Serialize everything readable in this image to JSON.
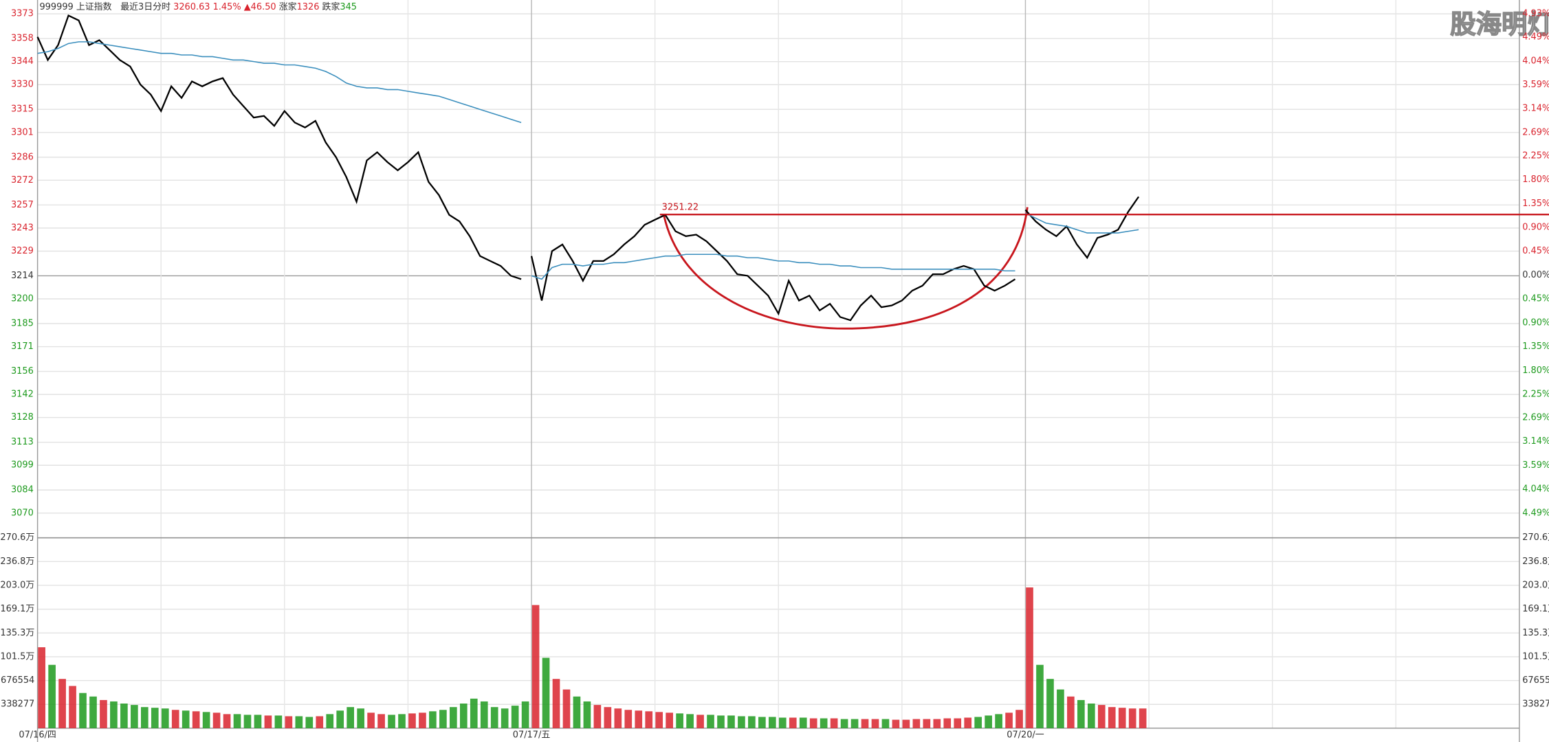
{
  "chart_data": {
    "type": "line",
    "header": {
      "symbol": "999999 上证指数",
      "period": "最近3日分时",
      "last": "3260.63",
      "pct": "1.45%",
      "change": "▲46.50",
      "up_label": "涨家",
      "up_count": "1326",
      "down_label": "跌家",
      "down_count": "345"
    },
    "watermark": "股海明灯",
    "annotation": 3251.22,
    "categories": [
      "07/16/四",
      null,
      null,
      null,
      null,
      null,
      null,
      null,
      null,
      null,
      null,
      null,
      null,
      null,
      null,
      null,
      null,
      null,
      null,
      null,
      null,
      null,
      null,
      null,
      null,
      null,
      null,
      null,
      null,
      null,
      null,
      null,
      null,
      null,
      null,
      null,
      null,
      null,
      null,
      null,
      null,
      null,
      null,
      null,
      null,
      null,
      null,
      null,
      "07/17/五",
      null,
      null,
      null,
      null,
      null,
      null,
      null,
      null,
      null,
      null,
      null,
      null,
      null,
      null,
      null,
      null,
      null,
      null,
      null,
      null,
      null,
      null,
      null,
      null,
      null,
      null,
      null,
      null,
      null,
      null,
      null,
      null,
      null,
      null,
      null,
      null,
      null,
      null,
      null,
      null,
      null,
      null,
      null,
      null,
      null,
      null,
      null,
      "07/20/一",
      null,
      null,
      null,
      null,
      null,
      null,
      null,
      null,
      null,
      null,
      null
    ],
    "series": [
      {
        "color": "#000000",
        "values": [
          3359,
          3345,
          3354,
          3372,
          3369,
          3354,
          3357,
          3351,
          3345,
          3341,
          3330,
          3324,
          3314,
          3329,
          3322,
          3332,
          3329,
          3332,
          3334,
          3324,
          3317,
          3310,
          3311,
          3305,
          3314,
          3307,
          3304,
          3308,
          3295,
          3286,
          3274,
          3259,
          3284,
          3289,
          3283,
          3278,
          3283,
          3289,
          3271,
          3263,
          3251,
          3247,
          3238,
          3226,
          3223,
          3220,
          3214,
          3212,
          3226,
          3199,
          3229,
          3233,
          3223,
          3211,
          3223,
          3223,
          3227,
          3233,
          3238,
          3245,
          3248,
          3251,
          3241,
          3238,
          3239,
          3235,
          3229,
          3223,
          3215,
          3214,
          3208,
          3202,
          3191,
          3211,
          3199,
          3202,
          3193,
          3197,
          3189,
          3187,
          3196,
          3202,
          3195,
          3196,
          3199,
          3205,
          3208,
          3215,
          3215,
          3218,
          3220,
          3218,
          3208,
          3205,
          3208,
          3212,
          3254,
          3247,
          3242,
          3238,
          3244,
          3233,
          3225,
          3237,
          3239,
          3242,
          3253,
          3262
        ]
      },
      {
        "color": "#3a8ebd",
        "values": [
          3349,
          3350,
          3352,
          3355,
          3356,
          3356,
          3355,
          3354,
          3353,
          3352,
          3351,
          3350,
          3349,
          3349,
          3348,
          3348,
          3347,
          3347,
          3346,
          3345,
          3345,
          3344,
          3343,
          3343,
          3342,
          3342,
          3341,
          3340,
          3338,
          3335,
          3331,
          3329,
          3328,
          3328,
          3327,
          3327,
          3326,
          3325,
          3324,
          3323,
          3321,
          3319,
          3317,
          3315,
          3313,
          3311,
          3309,
          3307,
          3214,
          3212,
          3219,
          3221,
          3221,
          3220,
          3221,
          3221,
          3222,
          3222,
          3223,
          3224,
          3225,
          3226,
          3226,
          3227,
          3227,
          3227,
          3227,
          3226,
          3226,
          3225,
          3225,
          3224,
          3223,
          3223,
          3222,
          3222,
          3221,
          3221,
          3220,
          3220,
          3219,
          3219,
          3219,
          3218,
          3218,
          3218,
          3218,
          3218,
          3218,
          3218,
          3218,
          3218,
          3218,
          3218,
          3217,
          3217,
          3252,
          3249,
          3246,
          3245,
          3244,
          3242,
          3240,
          3240,
          3240,
          3240,
          3241,
          3242
        ]
      }
    ],
    "ylim": [
      3070,
      3373
    ],
    "yticks": [
      3373,
      3358,
      3344,
      3330,
      3315,
      3301,
      3286,
      3272,
      3257,
      3243,
      3229,
      3214,
      3200,
      3185,
      3171,
      3156,
      3142,
      3128,
      3113,
      3099,
      3084,
      3070
    ],
    "y2lim": [
      -4.49,
      4.93
    ],
    "y2ticks": [
      {
        "value": 4.93,
        "label": "4.93%"
      },
      {
        "value": 4.49,
        "label": "4.49%"
      },
      {
        "value": 4.04,
        "label": "4.04%"
      },
      {
        "value": 3.59,
        "label": "3.59%"
      },
      {
        "value": 3.14,
        "label": "3.14%"
      },
      {
        "value": 2.69,
        "label": "2.69%"
      },
      {
        "value": 2.25,
        "label": "2.25%"
      },
      {
        "value": 1.8,
        "label": "1.80%"
      },
      {
        "value": 1.35,
        "label": "1.35%"
      },
      {
        "value": 0.9,
        "label": "0.90%"
      },
      {
        "value": 0.45,
        "label": "0.45%"
      },
      {
        "value": 0,
        "label": "0.00%"
      },
      {
        "value": -0.45,
        "label": "0.45%"
      },
      {
        "value": -0.9,
        "label": "0.90%"
      },
      {
        "value": -1.35,
        "label": "1.35%"
      },
      {
        "value": -1.8,
        "label": "1.80%"
      },
      {
        "value": -2.25,
        "label": "2.25%"
      },
      {
        "value": -2.69,
        "label": "2.69%"
      },
      {
        "value": -3.14,
        "label": "3.14%"
      },
      {
        "value": -3.59,
        "label": "3.59%"
      },
      {
        "value": -4.04,
        "label": "4.04%"
      },
      {
        "value": -4.49,
        "label": "4.49%"
      }
    ],
    "up_color": "#d9232d",
    "down_color": "#1d9a1d",
    "grid": true,
    "volume": {
      "ylim": [
        0,
        2706000
      ],
      "yticks": [
        {
          "value": 2706000,
          "label": "270.6万"
        },
        {
          "value": 2368000,
          "label": "236.8万"
        },
        {
          "value": 2030000,
          "label": "203.0万"
        },
        {
          "value": 1691000,
          "label": "169.1万"
        },
        {
          "value": 1353000,
          "label": "135.3万"
        },
        {
          "value": 1015000,
          "label": "101.5万"
        },
        676554,
        338277
      ],
      "values": [
        1150000,
        900000,
        700000,
        600000,
        500000,
        450000,
        400000,
        380000,
        350000,
        330000,
        300000,
        290000,
        280000,
        260000,
        250000,
        240000,
        230000,
        220000,
        200000,
        200000,
        190000,
        190000,
        180000,
        180000,
        170000,
        170000,
        160000,
        170000,
        200000,
        250000,
        300000,
        280000,
        220000,
        200000,
        190000,
        200000,
        210000,
        220000,
        240000,
        260000,
        300000,
        350000,
        420000,
        380000,
        300000,
        280000,
        320000,
        380000,
        1750000,
        1000000,
        700000,
        550000,
        450000,
        380000,
        330000,
        300000,
        280000,
        260000,
        250000,
        240000,
        230000,
        220000,
        210000,
        200000,
        190000,
        190000,
        180000,
        180000,
        170000,
        170000,
        160000,
        160000,
        150000,
        150000,
        150000,
        140000,
        140000,
        140000,
        130000,
        130000,
        130000,
        130000,
        130000,
        120000,
        120000,
        130000,
        130000,
        130000,
        140000,
        140000,
        150000,
        160000,
        180000,
        200000,
        220000,
        260000,
        2000000,
        900000,
        700000,
        550000,
        450000,
        400000,
        350000,
        330000,
        300000,
        290000,
        280000,
        280000
      ]
    }
  }
}
